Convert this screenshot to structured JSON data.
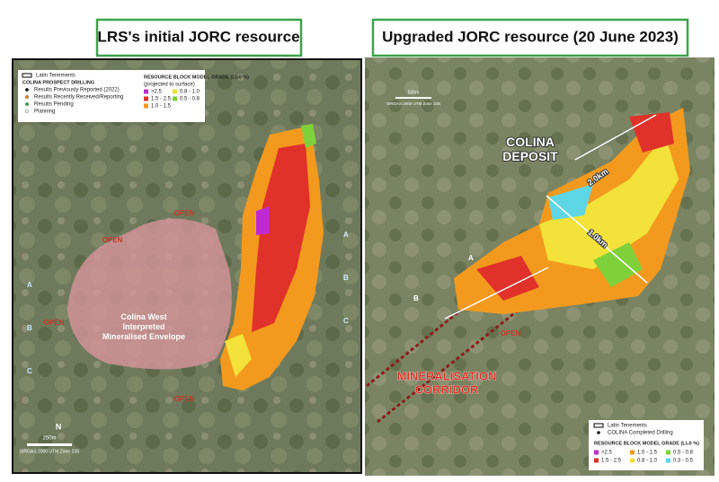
{
  "left": {
    "title": "LRS's initial JORC resource",
    "legend": {
      "tenements": "Latin Tenements",
      "heading": "COLINA PROSPECT DRILLING",
      "drilling": [
        "Results Previously Reported (2022)",
        "Results Recently Received/Reporting",
        "Results Pending",
        "Planning"
      ],
      "grade_heading": "RESOURCE BLOCK MODEL GRADE (Li₂0 %)",
      "grade_note": "(projected to surface)",
      "grades": [
        {
          "label": ">2.5",
          "color": "#c02ad1"
        },
        {
          "label": "1.5 - 2.5",
          "color": "#e0312a"
        },
        {
          "label": "1.0 - 1.5",
          "color": "#f39a1e"
        },
        {
          "label": "0.8 - 1.0",
          "color": "#f2e23a"
        },
        {
          "label": "0.5 - 0.8",
          "color": "#7fd13b"
        }
      ]
    },
    "envelope": "Colina West Interpreted Mineralised Envelope",
    "open": [
      "OPEN",
      "OPEN",
      "OPEN",
      "OPEN"
    ],
    "sections": [
      "A",
      "B",
      "C"
    ],
    "scale": "250m",
    "projection": "SIRGAS 2000 UTM Zone 23S"
  },
  "right": {
    "title": "Upgraded JORC resource (20 June 2023)",
    "deposit": "COLINA DEPOSIT",
    "length": "2.0km",
    "width": "1.0km",
    "open": "OPEN",
    "corridor": "MINERALISATION CORRIDOR",
    "sections": [
      "A",
      "B"
    ],
    "scale": "500m",
    "projection": "SIRGAS 2000 UTM Zone 23S",
    "legend": {
      "tenements": "Latin Tenements",
      "drilling": "COLINA Completed Drilling",
      "grade_heading": "RESOURCE BLOCK MODEL GRADE (Li₂0 %)",
      "grades": [
        {
          "label": ">2.5",
          "color": "#c02ad1"
        },
        {
          "label": "1.5 - 2.5",
          "color": "#e0312a"
        },
        {
          "label": "1.0 - 1.5",
          "color": "#f39a1e"
        },
        {
          "label": "0.8 - 1.0",
          "color": "#f2e23a"
        },
        {
          "label": "0.5 - 0.8",
          "color": "#7fd13b"
        },
        {
          "label": "0.3 - 0.5",
          "color": "#5fd6e6"
        }
      ]
    }
  }
}
